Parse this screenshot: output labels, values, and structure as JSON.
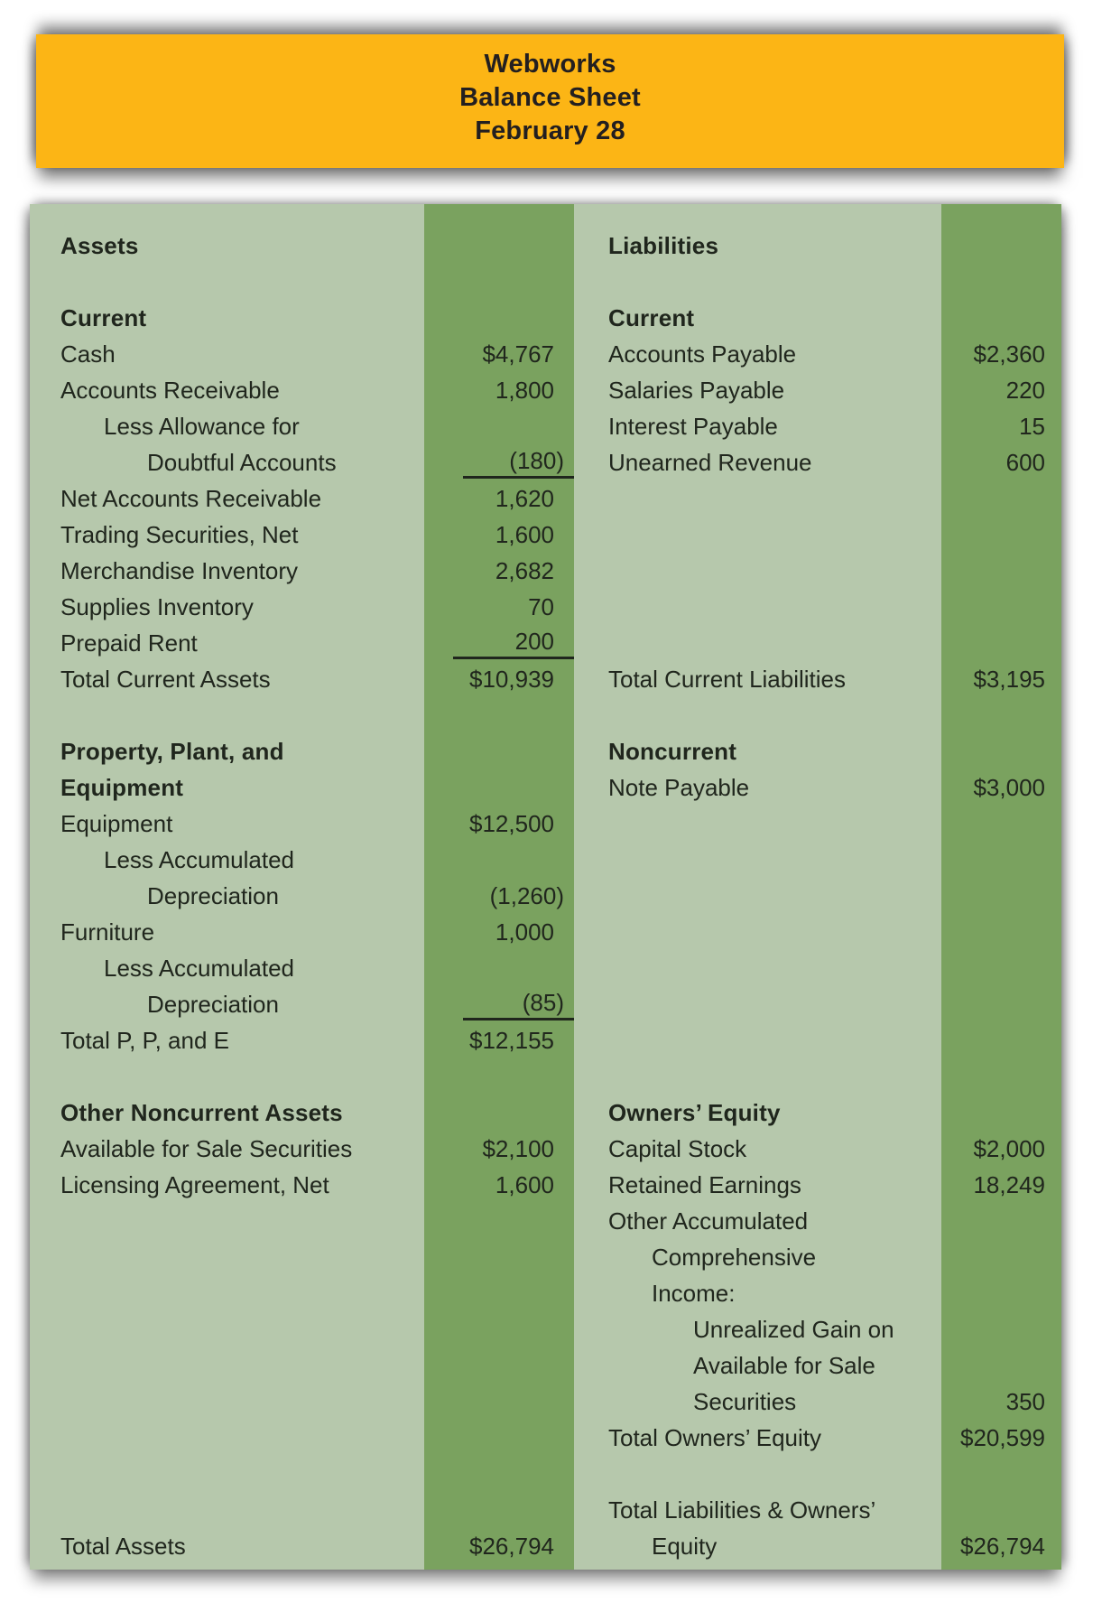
{
  "header": {
    "line1": "Webworks",
    "line2": "Balance Sheet",
    "line3": "February 28"
  },
  "colors": {
    "header_bg": "#FCB515",
    "sheet_light": "#B6C8AC",
    "sheet_dark": "#7AA25F",
    "ink": "#20261D",
    "title_ink": "#231F20"
  },
  "assets": {
    "rows": [
      {
        "label": "Assets",
        "bold": true
      },
      {
        "spacer": true
      },
      {
        "label": "Current",
        "bold": true
      },
      {
        "label": "Cash",
        "value": "$4,767"
      },
      {
        "label": "Accounts Receivable",
        "value": "1,800"
      },
      {
        "label": "Less Allowance for",
        "indent": 1
      },
      {
        "label": "Doubtful Accounts",
        "indent": 2,
        "value": "(180)",
        "rule": true
      },
      {
        "label": "Net Accounts Receivable",
        "value": "1,620"
      },
      {
        "label": "Trading Securities, Net",
        "value": "1,600"
      },
      {
        "label": "Merchandise Inventory",
        "value": "2,682"
      },
      {
        "label": "Supplies Inventory",
        "value": "70"
      },
      {
        "label": "Prepaid Rent",
        "value": "200",
        "rule": true
      },
      {
        "label": "Total Current Assets",
        "value": "$10,939"
      },
      {
        "spacer": true
      },
      {
        "label": "Property, Plant, and",
        "bold": true
      },
      {
        "label": "Equipment",
        "bold": true
      },
      {
        "label": "Equipment",
        "value": "$12,500"
      },
      {
        "label": "Less Accumulated",
        "indent": 1
      },
      {
        "label": "Depreciation",
        "indent": 2,
        "value": "(1,260)"
      },
      {
        "label": "Furniture",
        "value": "1,000"
      },
      {
        "label": "Less Accumulated",
        "indent": 1
      },
      {
        "label": "Depreciation",
        "indent": 2,
        "value": "(85)",
        "rule": true
      },
      {
        "label": "Total P, P, and E",
        "value": "$12,155"
      },
      {
        "spacer": true
      },
      {
        "label": "Other Noncurrent Assets",
        "bold": true
      },
      {
        "label": "Available for Sale Securities",
        "value": "$2,100"
      },
      {
        "label": "Licensing Agreement, Net",
        "value": "1,600"
      },
      {
        "spacer": true
      },
      {
        "spacer": true
      },
      {
        "spacer": true
      },
      {
        "spacer": true
      },
      {
        "spacer": true
      },
      {
        "spacer": true
      },
      {
        "spacer": true
      },
      {
        "spacer": true
      },
      {
        "spacer": true
      },
      {
        "label": "Total Assets",
        "value": "$26,794"
      }
    ]
  },
  "liabilities": {
    "rows": [
      {
        "label": "Liabilities",
        "bold": true
      },
      {
        "spacer": true
      },
      {
        "label": "Current",
        "bold": true
      },
      {
        "label": "Accounts Payable",
        "value": "$2,360"
      },
      {
        "label": "Salaries Payable",
        "value": "220"
      },
      {
        "label": "Interest Payable",
        "value": "15"
      },
      {
        "label": "Unearned Revenue",
        "value": "600"
      },
      {
        "spacer": true
      },
      {
        "spacer": true
      },
      {
        "spacer": true
      },
      {
        "spacer": true
      },
      {
        "spacer": true
      },
      {
        "label": "Total Current Liabilities",
        "value": "$3,195"
      },
      {
        "spacer": true
      },
      {
        "label": "Noncurrent",
        "bold": true
      },
      {
        "label": "Note Payable",
        "value": "$3,000"
      },
      {
        "spacer": true
      },
      {
        "spacer": true
      },
      {
        "spacer": true
      },
      {
        "spacer": true
      },
      {
        "spacer": true
      },
      {
        "spacer": true
      },
      {
        "spacer": true
      },
      {
        "spacer": true
      },
      {
        "label": "Owners’ Equity",
        "bold": true
      },
      {
        "label": "Capital Stock",
        "value": "$2,000"
      },
      {
        "label": "Retained Earnings",
        "value": "18,249"
      },
      {
        "label": "Other Accumulated"
      },
      {
        "label": "Comprehensive",
        "indent": 1
      },
      {
        "label": "Income:",
        "indent": 1
      },
      {
        "label": "Unrealized Gain on",
        "indent": 2
      },
      {
        "label": "Available for Sale",
        "indent": 2
      },
      {
        "label": "Securities",
        "indent": 2,
        "value": "350"
      },
      {
        "label": "Total Owners’ Equity",
        "value": "$20,599"
      },
      {
        "spacer": true
      },
      {
        "label": "Total Liabilities & Owners’"
      },
      {
        "label": "Equity",
        "indent": 1,
        "value": "$26,794"
      }
    ]
  }
}
